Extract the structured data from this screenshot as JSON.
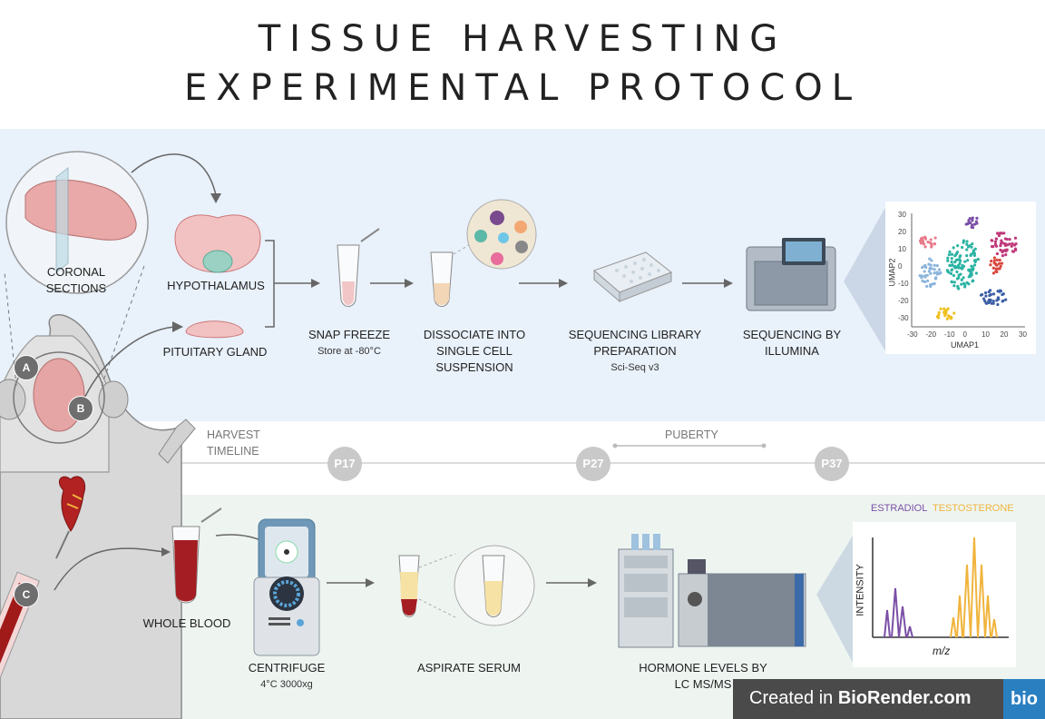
{
  "title": {
    "line1": "TISSUE HARVESTING",
    "line2": "EXPERIMENTAL PROTOCOL"
  },
  "top_steps": {
    "coronal": "CORONAL SECTIONS",
    "hypothalamus": "HYPOTHALAMUS",
    "pituitary": "PITUITARY GLAND",
    "snap_freeze": "SNAP FREEZE",
    "snap_freeze_sub": "Store at -80°C",
    "dissociate": "DISSOCIATE INTO SINGLE CELL SUSPENSION",
    "library": "SEQUENCING LIBRARY PREPARATION",
    "library_sub": "Sci-Seq v3",
    "sequencing": "SEQUENCING BY ILLUMINA"
  },
  "umap": {
    "xlabel": "UMAP1",
    "ylabel": "UMAP2",
    "xticks": [
      "-30",
      "-20",
      "-10",
      "0",
      "10",
      "20",
      "30"
    ],
    "yticks": [
      "30",
      "20",
      "10",
      "0",
      "-10",
      "-20",
      "-30"
    ]
  },
  "timeline": {
    "label": "HARVEST TIMELINE",
    "puberty": "PUBERTY",
    "nodes": [
      "P17",
      "P27",
      "P37"
    ]
  },
  "markers": [
    "A",
    "B",
    "C"
  ],
  "bottom_steps": {
    "whole_blood": "WHOLE BLOOD",
    "centrifuge": "CENTRIFUGE",
    "centrifuge_sub": "4°C 3000xg",
    "aspirate": "ASPIRATE SERUM",
    "hormone": "HORMONE LEVELS BY LC MS/MS"
  },
  "spectrum": {
    "legend_estradiol": "ESTRADIOL",
    "legend_testosterone": "TESTOSTERONE",
    "ylabel": "INTENSITY",
    "xlabel": "m/z"
  },
  "colors": {
    "top_band": "#e9f1fb",
    "bottom_band": "#eef5f1",
    "estradiol": "#7b4fa6",
    "testosterone": "#f0b43c",
    "footer_bg": "#4a4a4a",
    "logo_bg": "#2a7fc1"
  },
  "footer": {
    "prefix": "Created in ",
    "brand": "BioRender.com",
    "logo": "bio"
  }
}
